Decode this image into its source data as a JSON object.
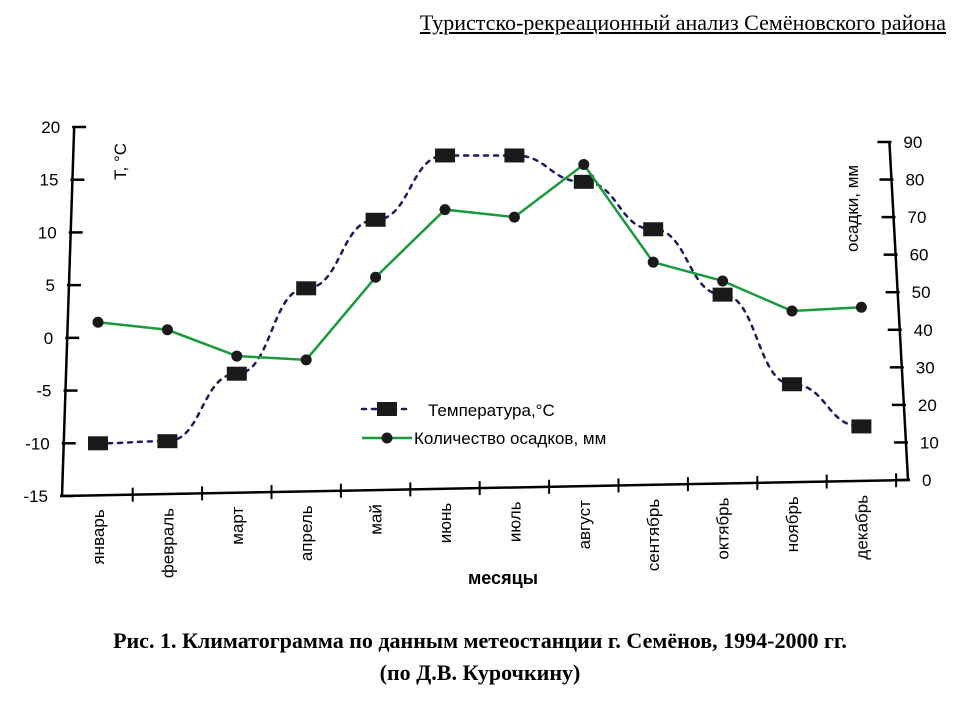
{
  "header": {
    "title": "Туристско-рекреационный анализ Семёновского района"
  },
  "caption": {
    "line1": "Рис. 1. Климатограмма по данным метеостанции г. Семёнов, 1994-2000 гг.",
    "line2": "(по Д.В. Курочкину)"
  },
  "chart_data": {
    "type": "line",
    "categories": [
      "январь",
      "февраль",
      "март",
      "апрель",
      "май",
      "июнь",
      "июль",
      "август",
      "сентябрь",
      "октябрь",
      "ноябрь",
      "декабрь"
    ],
    "xlabel": "месяцы",
    "y_left": {
      "label": "Т, °С",
      "ylim": [
        -15,
        20
      ],
      "ticks": [
        -15,
        -10,
        -5,
        0,
        5,
        10,
        15,
        20
      ]
    },
    "y_right": {
      "label": "осадки, мм",
      "ylim": [
        0,
        90
      ],
      "ticks": [
        0,
        10,
        20,
        30,
        40,
        50,
        60,
        70,
        80,
        90
      ]
    },
    "series": [
      {
        "name": "Температура,°С",
        "axis": "left",
        "style": "dotted",
        "marker": "square",
        "color": "#1c1c5c",
        "values": [
          -10,
          -9.8,
          -3.4,
          4.7,
          11.2,
          17.3,
          17.3,
          14.8,
          10.3,
          4.1,
          -4.4,
          -8.4
        ]
      },
      {
        "name": "Количество осадков, мм",
        "axis": "right",
        "style": "solid",
        "marker": "circle",
        "color": "#1a9a3a",
        "values": [
          42,
          40,
          33,
          32,
          54,
          72,
          70,
          84,
          58,
          53,
          45,
          46
        ]
      }
    ],
    "grid": false,
    "legend_placement": "lower-center"
  }
}
